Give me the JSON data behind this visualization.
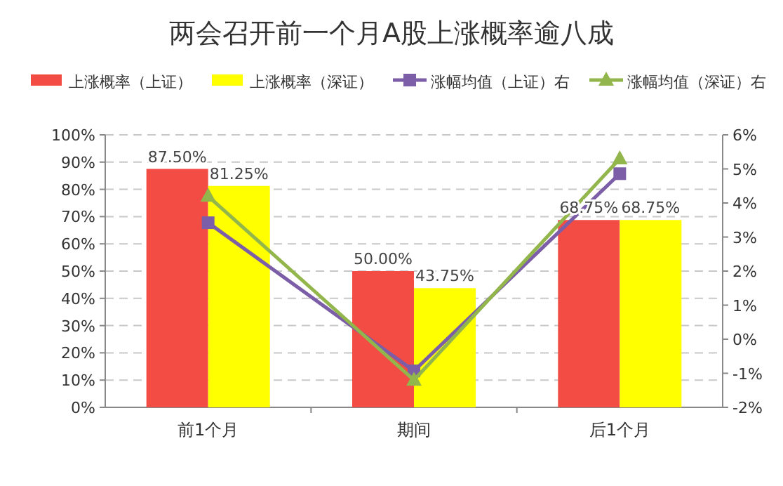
{
  "chart_data": {
    "type": "bar",
    "title": "两会召开前一个月A股上涨概率逾八成",
    "categories": [
      "前1个月",
      "期间",
      "后1个月"
    ],
    "series": [
      {
        "name": "上涨概率（上证）",
        "color": "#f24c45",
        "values": [
          87.5,
          50,
          68.75
        ],
        "value_labels": [
          "87.50%",
          "50.00%",
          "68.75%"
        ]
      },
      {
        "name": "上涨概率（深证）",
        "color": "#ffff00",
        "values": [
          81.25,
          43.75,
          68.75
        ],
        "value_labels": [
          "81.25%",
          "43.75%",
          "68.75%"
        ]
      },
      {
        "name": "涨幅均值（上证）右",
        "type": "line",
        "axis": "y2",
        "marker": "square",
        "color": "#7b5ea7",
        "values": [
          3.42,
          -0.93,
          4.86
        ]
      },
      {
        "name": "涨幅均值（深证）右",
        "type": "line",
        "axis": "y2",
        "marker": "triangle",
        "color": "#92b64b",
        "values": [
          4.2,
          -1.2,
          5.3
        ]
      }
    ],
    "ylim": [
      0,
      100
    ],
    "yticks": [
      {
        "value": 0,
        "label": "0%"
      },
      {
        "value": 10,
        "label": "10%"
      },
      {
        "value": 20,
        "label": "20%"
      },
      {
        "value": 30,
        "label": "30%"
      },
      {
        "value": 40,
        "label": "40%"
      },
      {
        "value": 50,
        "label": "50%"
      },
      {
        "value": 60,
        "label": "60%"
      },
      {
        "value": 70,
        "label": "70%"
      },
      {
        "value": 80,
        "label": "80%"
      },
      {
        "value": 90,
        "label": "90%"
      },
      {
        "value": 100,
        "label": "100%"
      }
    ],
    "y2lim": [
      -2,
      6
    ],
    "y2ticks": [
      {
        "value": -2,
        "label": "-2%"
      },
      {
        "value": -1,
        "label": "-1%"
      },
      {
        "value": 0,
        "label": "0%"
      },
      {
        "value": 1,
        "label": "1%"
      },
      {
        "value": 2,
        "label": "2%"
      },
      {
        "value": 3,
        "label": "3%"
      },
      {
        "value": 4,
        "label": "4%"
      },
      {
        "value": 5,
        "label": "5%"
      },
      {
        "value": 6,
        "label": "6%"
      }
    ],
    "grid": "y",
    "legend": "top"
  }
}
